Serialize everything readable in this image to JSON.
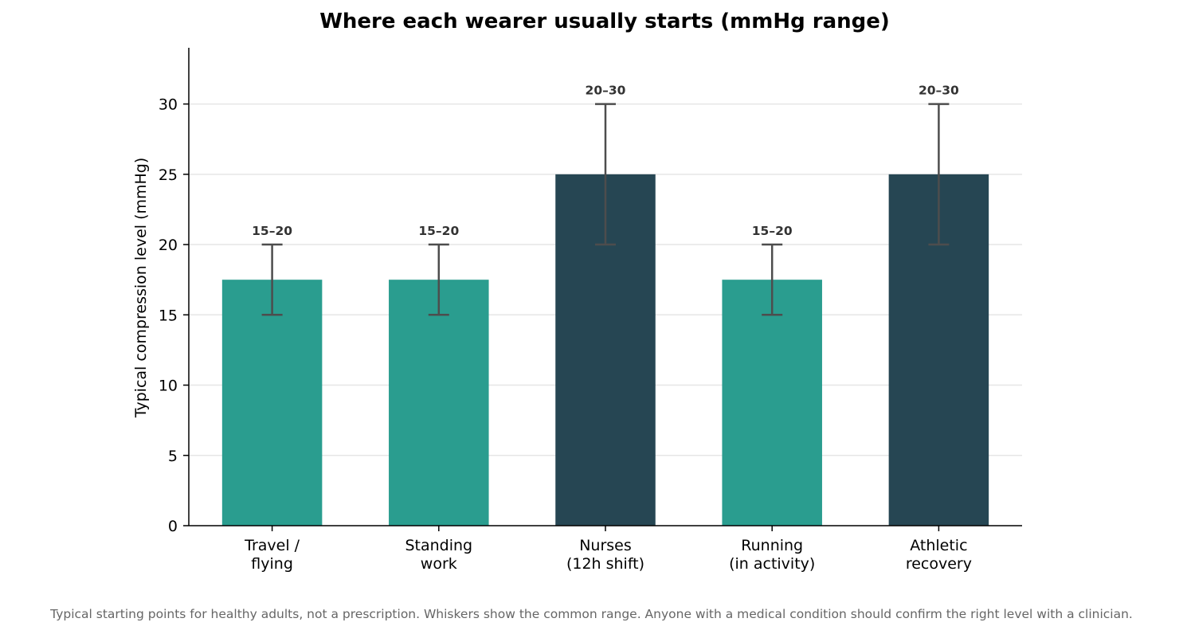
{
  "chart_data": {
    "type": "bar",
    "title": "Where each wearer usually starts (mmHg range)",
    "ylabel": "Typical compression level (mmHg)",
    "xlabel": "",
    "ylim": [
      0,
      34
    ],
    "yticks": [
      0,
      5,
      10,
      15,
      20,
      25,
      30
    ],
    "grid": "horizontal",
    "categories": [
      [
        "Travel /",
        "flying"
      ],
      [
        "Standing",
        "work"
      ],
      [
        "Nurses",
        "(12h shift)"
      ],
      [
        "Running",
        "(in activity)"
      ],
      [
        "Athletic",
        "recovery"
      ]
    ],
    "values": [
      17.5,
      17.5,
      25,
      17.5,
      25
    ],
    "ranges": [
      [
        15,
        20
      ],
      [
        15,
        20
      ],
      [
        20,
        30
      ],
      [
        15,
        20
      ],
      [
        20,
        30
      ]
    ],
    "range_labels": [
      "15–20",
      "15–20",
      "20–30",
      "15–20",
      "20–30"
    ],
    "bar_colors": [
      "#2a9d8f",
      "#2a9d8f",
      "#264653",
      "#2a9d8f",
      "#264653"
    ],
    "whisker_color": "#4d4d4d",
    "grid_color": "#e6e6e6"
  },
  "footnote": "Typical starting points for healthy adults, not a prescription. Whiskers show the common range. Anyone with a medical condition should confirm the right level with a clinician."
}
